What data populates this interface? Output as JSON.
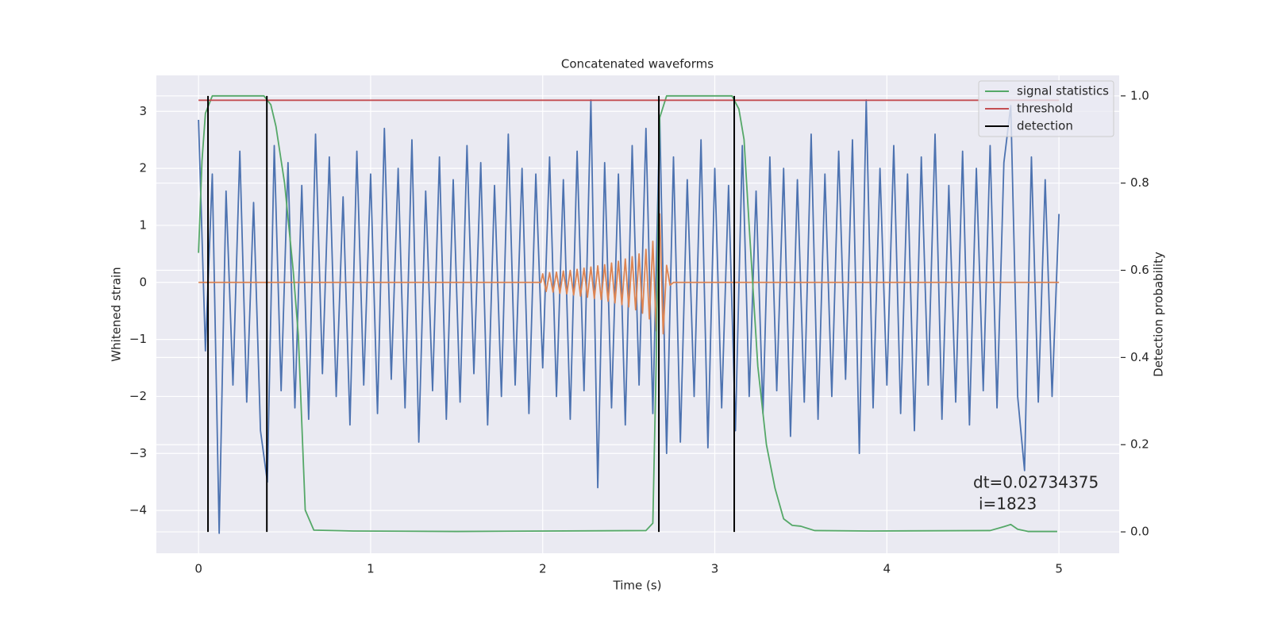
{
  "chart_data": {
    "type": "line",
    "title": "Concatenated waveforms",
    "xlabel": "Time (s)",
    "ylabel": "Whitened strain",
    "y2label": "Detection probability",
    "xlim": [
      -0.245,
      5.35
    ],
    "ylim": [
      -4.75,
      3.63
    ],
    "y2lim": [
      -0.049,
      1.047
    ],
    "xticks": [
      0,
      1,
      2,
      3,
      4,
      5
    ],
    "yticks": [
      {
        "value": -4,
        "label": "−4"
      },
      {
        "value": -3,
        "label": "−3"
      },
      {
        "value": -2,
        "label": "−2"
      },
      {
        "value": -1,
        "label": "−1"
      },
      0,
      1,
      2,
      3
    ],
    "y2ticks": [
      {
        "value": 0,
        "label": "0.0"
      },
      {
        "value": 0.2,
        "label": "0.2"
      },
      {
        "value": 0.4,
        "label": "0.4"
      },
      {
        "value": 0.6,
        "label": "0.6"
      },
      {
        "value": 0.8,
        "label": "0.8"
      },
      {
        "value": 1,
        "label": "1.0"
      }
    ],
    "grid": true,
    "legend": "upper right",
    "series": [
      {
        "color": "#4c72b0",
        "x": [
          0,
          0.04,
          0.08,
          0.12,
          0.16,
          0.2,
          0.24,
          0.28,
          0.32,
          0.36,
          0.4,
          0.44,
          0.48,
          0.52,
          0.56,
          0.6,
          0.64,
          0.68,
          0.72,
          0.76,
          0.8,
          0.84,
          0.88,
          0.92,
          0.96,
          1,
          1.04,
          1.08,
          1.12,
          1.16,
          1.2,
          1.24,
          1.28,
          1.32,
          1.36,
          1.4,
          1.44,
          1.48,
          1.52,
          1.56,
          1.6,
          1.64,
          1.68,
          1.72,
          1.76,
          1.8,
          1.84,
          1.88,
          1.92,
          1.96,
          2,
          2.04,
          2.08,
          2.12,
          2.16,
          2.2,
          2.24,
          2.28,
          2.32,
          2.36,
          2.4,
          2.44,
          2.48,
          2.52,
          2.56,
          2.6,
          2.64,
          2.68,
          2.72,
          2.76,
          2.8,
          2.84,
          2.88,
          2.92,
          2.96,
          3,
          3.04,
          3.08,
          3.12,
          3.16,
          3.2,
          3.24,
          3.28,
          3.32,
          3.36,
          3.4,
          3.44,
          3.48,
          3.52,
          3.56,
          3.6,
          3.64,
          3.68,
          3.72,
          3.76,
          3.8,
          3.84,
          3.88,
          3.92,
          3.96,
          4,
          4.04,
          4.08,
          4.12,
          4.16,
          4.2,
          4.24,
          4.28,
          4.32,
          4.36,
          4.4,
          4.44,
          4.48,
          4.52,
          4.56,
          4.6,
          4.64,
          4.68,
          4.72,
          4.76,
          4.8,
          4.84,
          4.88,
          4.92,
          4.96,
          5
        ],
        "values": [
          2.85,
          -1.2,
          1.9,
          -4.4,
          1.6,
          -1.8,
          2.3,
          -2.1,
          1.4,
          -2.6,
          -3.5,
          2.4,
          -1.9,
          2.1,
          -2.2,
          1.7,
          -2.4,
          2.6,
          -1.6,
          2.2,
          -2.0,
          1.5,
          -2.5,
          2.3,
          -1.8,
          1.9,
          -2.3,
          2.7,
          -1.7,
          2.0,
          -2.2,
          2.5,
          -2.8,
          1.6,
          -1.9,
          2.2,
          -2.4,
          1.8,
          -2.1,
          2.4,
          -1.6,
          2.1,
          -2.5,
          1.7,
          -2.0,
          2.6,
          -1.8,
          2.0,
          -2.3,
          1.9,
          -1.5,
          2.2,
          -2.0,
          1.8,
          -2.4,
          2.3,
          -1.9,
          3.2,
          -3.6,
          2.1,
          -2.2,
          1.9,
          -2.5,
          2.4,
          -1.8,
          2.7,
          -2.3,
          2.9,
          -3.0,
          2.2,
          -2.8,
          1.8,
          -2.0,
          2.5,
          -2.9,
          2.0,
          -2.2,
          1.7,
          -2.6,
          2.4,
          -2.0,
          1.6,
          -2.3,
          2.2,
          -1.9,
          2.0,
          -2.7,
          1.8,
          -2.1,
          2.6,
          -2.4,
          1.9,
          -2.0,
          2.3,
          -1.7,
          2.5,
          -3.0,
          3.2,
          -2.2,
          2.0,
          -1.8,
          2.4,
          -2.3,
          1.9,
          -2.6,
          2.2,
          -1.8,
          2.6,
          -2.4,
          1.7,
          -2.1,
          2.3,
          -2.5,
          2.0,
          -1.9,
          2.4,
          -2.2,
          2.1,
          3.1,
          -2.0,
          -3.3,
          2.2,
          -2.1,
          1.8,
          -2.0,
          1.2
        ]
      },
      {
        "color": "#dd8452",
        "x": [
          0,
          1.99,
          2,
          2.02,
          2.04,
          2.06,
          2.08,
          2.1,
          2.12,
          2.14,
          2.16,
          2.18,
          2.2,
          2.22,
          2.24,
          2.26,
          2.28,
          2.3,
          2.32,
          2.34,
          2.36,
          2.38,
          2.4,
          2.42,
          2.44,
          2.46,
          2.48,
          2.5,
          2.52,
          2.54,
          2.56,
          2.58,
          2.6,
          2.62,
          2.64,
          2.66,
          2.68,
          2.7,
          2.72,
          2.74,
          2.76,
          5
        ],
        "values": [
          0,
          0,
          0.15,
          -0.16,
          0.17,
          -0.17,
          0.18,
          -0.19,
          0.2,
          -0.2,
          0.21,
          -0.22,
          0.23,
          -0.24,
          0.25,
          -0.26,
          0.27,
          -0.28,
          0.29,
          -0.3,
          0.31,
          -0.33,
          0.34,
          -0.36,
          0.37,
          -0.39,
          0.41,
          -0.43,
          0.45,
          -0.48,
          0.5,
          -0.54,
          0.58,
          -0.64,
          0.72,
          -0.85,
          1.2,
          -0.9,
          0.3,
          -0.05,
          0,
          0
        ]
      },
      {
        "name": "signal statistics",
        "color": "#55a868",
        "axis": "y2",
        "x": [
          0,
          0.02,
          0.04,
          0.08,
          0.38,
          0.42,
          0.45,
          0.5,
          0.55,
          0.58,
          0.6,
          0.62,
          0.67,
          0.9,
          1.5,
          2.6,
          2.64,
          2.66,
          2.68,
          2.72,
          3.1,
          3.14,
          3.17,
          3.2,
          3.25,
          3.3,
          3.35,
          3.4,
          3.45,
          3.5,
          3.58,
          3.9,
          4.6,
          4.68,
          4.72,
          4.76,
          4.82,
          4.99
        ],
        "values": [
          0.64,
          0.85,
          0.96,
          1.0,
          1.0,
          0.98,
          0.93,
          0.8,
          0.6,
          0.45,
          0.25,
          0.05,
          0.004,
          0.002,
          0.001,
          0.003,
          0.02,
          0.4,
          0.95,
          1.0,
          1.0,
          0.97,
          0.9,
          0.7,
          0.38,
          0.2,
          0.1,
          0.03,
          0.015,
          0.013,
          0.003,
          0.002,
          0.003,
          0.012,
          0.017,
          0.006,
          0.001,
          0.001
        ]
      },
      {
        "name": "threshold",
        "color": "#c44e52",
        "axis": "y2",
        "x": [
          0,
          5
        ],
        "values": [
          0.99,
          0.99
        ]
      }
    ],
    "vlines": {
      "name": "detection",
      "color": "#000000",
      "axis": "y2",
      "x": [
        0.055,
        0.397,
        2.675,
        3.113
      ],
      "ymin": 0,
      "ymax": 1
    },
    "annotation": [
      "dt=0.02734375",
      "i=1823"
    ]
  }
}
